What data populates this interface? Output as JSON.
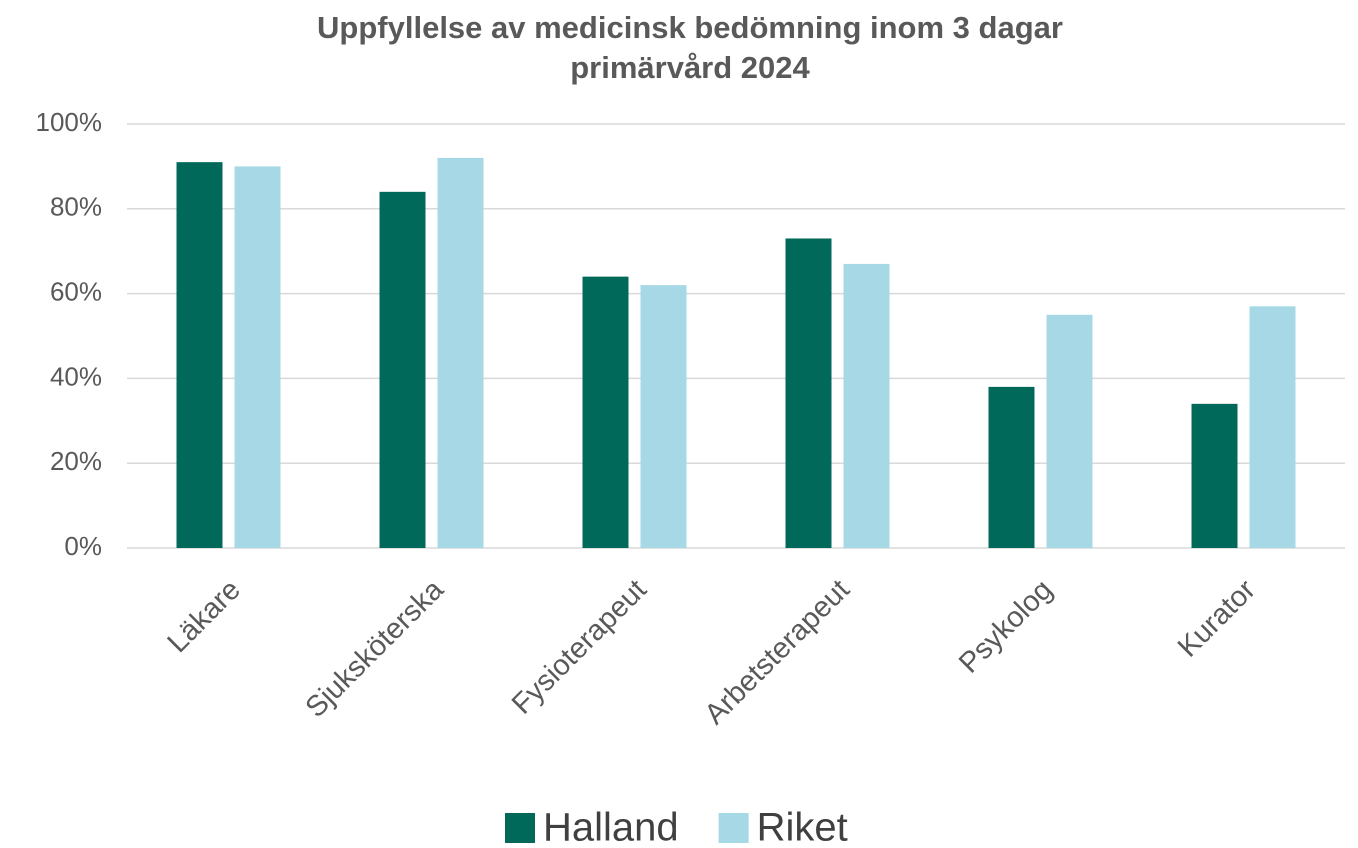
{
  "chart_data": {
    "type": "bar",
    "title": [
      "Uppfyllelse av medicinsk bedömning inom 3 dagar",
      "primärvård 2024"
    ],
    "categories": [
      "Läkare",
      "Sjuksköterska",
      "Fysioterapeut",
      "Arbetsterapeut",
      "Psykolog",
      "Kurator"
    ],
    "series": [
      {
        "name": "Halland",
        "color": "#00695a",
        "values": [
          91,
          84,
          64,
          73,
          38,
          34
        ]
      },
      {
        "name": "Riket",
        "color": "#a6d8e5",
        "values": [
          90,
          92,
          62,
          67,
          55,
          57
        ]
      }
    ],
    "ylim": [
      0,
      100
    ],
    "yticks": [
      {
        "value": 0,
        "label": "0%"
      },
      {
        "value": 20,
        "label": "20%"
      },
      {
        "value": 40,
        "label": "40%"
      },
      {
        "value": 60,
        "label": "60%"
      },
      {
        "value": 80,
        "label": "80%"
      },
      {
        "value": 100,
        "label": "100%"
      }
    ],
    "grid": true,
    "legend": "bottom"
  }
}
